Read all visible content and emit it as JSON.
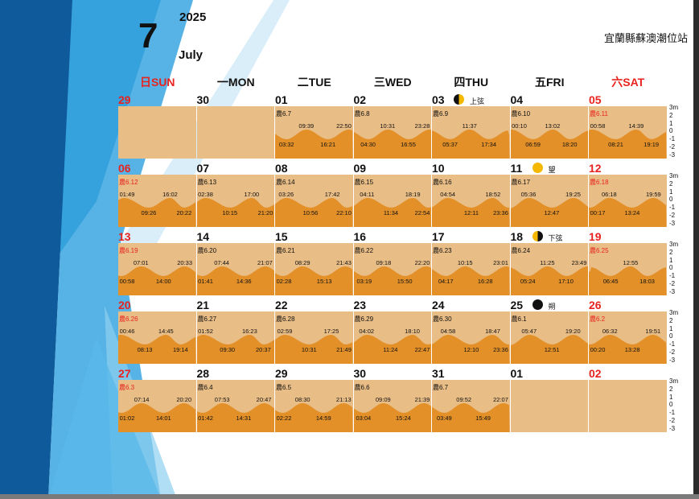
{
  "header": {
    "month_num": "7",
    "year": "2025",
    "month_name": "July",
    "station": "宜蘭縣蘇澳潮位站"
  },
  "weekdays": [
    {
      "label": "日SUN",
      "red": true
    },
    {
      "label": "一MON"
    },
    {
      "label": "二TUE"
    },
    {
      "label": "三WED"
    },
    {
      "label": "四THU"
    },
    {
      "label": "五FRI"
    },
    {
      "label": "六SAT",
      "red": true
    }
  ],
  "axis_labels": [
    "3m",
    "2",
    "1",
    "0",
    "-1",
    "-2",
    "-3"
  ],
  "colors": {
    "red": "#e8231f",
    "light": "#e9bd86",
    "dark": "#e39028"
  },
  "weeks": [
    [
      {
        "day": "29",
        "empty": true,
        "red": true
      },
      {
        "day": "30",
        "empty": true
      },
      {
        "day": "01",
        "lunar": "農6.7",
        "highs": [
          "09:39",
          "22:50"
        ],
        "lows": [
          "03:32",
          "16:21"
        ]
      },
      {
        "day": "02",
        "lunar": "農6.8",
        "highs": [
          "10:31",
          "23:28"
        ],
        "lows": [
          "04:30",
          "16:55"
        ]
      },
      {
        "day": "03",
        "moon": "first-quarter",
        "moon_label": "上弦",
        "lunar": "農6.9",
        "highs": [
          "11:37"
        ],
        "lows": [
          "05:37",
          "17:34"
        ]
      },
      {
        "day": "04",
        "lunar": "農6.10",
        "highs": [
          "00:10",
          "13:02"
        ],
        "lows": [
          "06:59",
          "18:20"
        ]
      },
      {
        "day": "05",
        "red": true,
        "lunar": "農6.11",
        "highs": [
          "00:58",
          "14:39"
        ],
        "lows": [
          "08:21",
          "19:19"
        ]
      }
    ],
    [
      {
        "day": "06",
        "red": true,
        "lunar": "農6.12",
        "highs": [
          "01:49",
          "16:02"
        ],
        "lows": [
          "09:26",
          "20:22"
        ]
      },
      {
        "day": "07",
        "lunar": "農6.13",
        "highs": [
          "02:38",
          "17:00"
        ],
        "lows": [
          "10:15",
          "21:20"
        ]
      },
      {
        "day": "08",
        "lunar": "農6.14",
        "highs": [
          "03:26",
          "17:42"
        ],
        "lows": [
          "10:56",
          "22:10"
        ]
      },
      {
        "day": "09",
        "lunar": "農6.15",
        "highs": [
          "04:11",
          "18:19"
        ],
        "lows": [
          "11:34",
          "22:54"
        ]
      },
      {
        "day": "10",
        "lunar": "農6.16",
        "highs": [
          "04:54",
          "18:52"
        ],
        "lows": [
          "12:11",
          "23:36"
        ]
      },
      {
        "day": "11",
        "moon": "full",
        "moon_label": "望",
        "lunar": "農6.17",
        "highs": [
          "05:36",
          "19:25"
        ],
        "lows": [
          "12:47"
        ]
      },
      {
        "day": "12",
        "red": true,
        "lunar": "農6.18",
        "highs": [
          "06:18",
          "19:59"
        ],
        "lows": [
          "00:17",
          "13:24"
        ]
      }
    ],
    [
      {
        "day": "13",
        "red": true,
        "lunar": "農6.19",
        "highs": [
          "07:01",
          "20:33"
        ],
        "lows": [
          "00:58",
          "14:00"
        ]
      },
      {
        "day": "14",
        "lunar": "農6.20",
        "highs": [
          "07:44",
          "21:07"
        ],
        "lows": [
          "01:41",
          "14:36"
        ]
      },
      {
        "day": "15",
        "lunar": "農6.21",
        "highs": [
          "08:29",
          "21:43"
        ],
        "lows": [
          "02:28",
          "15:13"
        ]
      },
      {
        "day": "16",
        "lunar": "農6.22",
        "highs": [
          "09:18",
          "22:20"
        ],
        "lows": [
          "03:19",
          "15:50"
        ]
      },
      {
        "day": "17",
        "lunar": "農6.23",
        "highs": [
          "10:15",
          "23:01"
        ],
        "lows": [
          "04:17",
          "16:28"
        ]
      },
      {
        "day": "18",
        "moon": "last-quarter",
        "moon_label": "下弦",
        "lunar": "農6.24",
        "highs": [
          "11:25",
          "23:49"
        ],
        "lows": [
          "05:24",
          "17:10"
        ]
      },
      {
        "day": "19",
        "red": true,
        "lunar": "農6.25",
        "highs": [
          "12:55"
        ],
        "lows": [
          "06:45",
          "18:03"
        ]
      }
    ],
    [
      {
        "day": "20",
        "red": true,
        "lunar": "農6.26",
        "highs": [
          "00:46",
          "14:45"
        ],
        "lows": [
          "08:13",
          "19:14"
        ]
      },
      {
        "day": "21",
        "lunar": "農6.27",
        "highs": [
          "01:52",
          "16:23"
        ],
        "lows": [
          "09:30",
          "20:37"
        ]
      },
      {
        "day": "22",
        "lunar": "農6.28",
        "highs": [
          "02:59",
          "17:25"
        ],
        "lows": [
          "10:31",
          "21:49"
        ]
      },
      {
        "day": "23",
        "lunar": "農6.29",
        "highs": [
          "04:02",
          "18:10"
        ],
        "lows": [
          "11:24",
          "22:47"
        ]
      },
      {
        "day": "24",
        "lunar": "農6.30",
        "highs": [
          "04:58",
          "18:47"
        ],
        "lows": [
          "12:10",
          "23:36"
        ]
      },
      {
        "day": "25",
        "moon": "new",
        "moon_label": "朔",
        "lunar": "農6.1",
        "highs": [
          "05:47",
          "19:20"
        ],
        "lows": [
          "12:51"
        ]
      },
      {
        "day": "26",
        "red": true,
        "lunar": "農6.2",
        "highs": [
          "06:32",
          "19:51"
        ],
        "lows": [
          "00:20",
          "13:28"
        ]
      }
    ],
    [
      {
        "day": "27",
        "red": true,
        "lunar": "農6.3",
        "highs": [
          "07:14",
          "20:20"
        ],
        "lows": [
          "01:02",
          "14:01"
        ]
      },
      {
        "day": "28",
        "lunar": "農6.4",
        "highs": [
          "07:53",
          "20:47"
        ],
        "lows": [
          "01:42",
          "14:31"
        ]
      },
      {
        "day": "29",
        "lunar": "農6.5",
        "highs": [
          "08:30",
          "21:13"
        ],
        "lows": [
          "02:22",
          "14:59"
        ]
      },
      {
        "day": "30",
        "lunar": "農6.6",
        "highs": [
          "09:09",
          "21:39"
        ],
        "lows": [
          "03:04",
          "15:24"
        ]
      },
      {
        "day": "31",
        "lunar": "農6.7",
        "highs": [
          "09:52",
          "22:07"
        ],
        "lows": [
          "03:49",
          "15:49"
        ]
      },
      {
        "day": "01",
        "empty": true
      },
      {
        "day": "02",
        "empty": true,
        "red": true
      }
    ]
  ]
}
